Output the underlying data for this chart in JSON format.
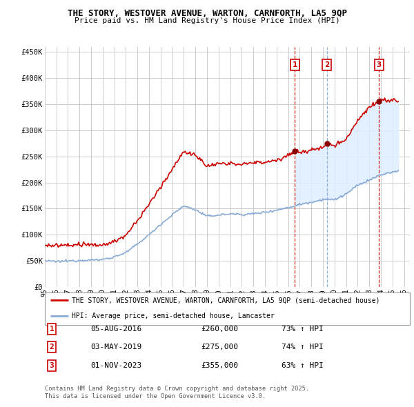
{
  "title": "THE STORY, WESTOVER AVENUE, WARTON, CARNFORTH, LA5 9QP",
  "subtitle": "Price paid vs. HM Land Registry's House Price Index (HPI)",
  "legend_property": "THE STORY, WESTOVER AVENUE, WARTON, CARNFORTH, LA5 9QP (semi-detached house)",
  "legend_hpi": "HPI: Average price, semi-detached house, Lancaster",
  "footer": "Contains HM Land Registry data © Crown copyright and database right 2025.\nThis data is licensed under the Open Government Licence v3.0.",
  "sales": [
    {
      "num": 1,
      "date": "05-AUG-2016",
      "year": 2016.58,
      "price": 260000,
      "hpi_pct": "73% ↑ HPI",
      "vline_color": "#cc0000",
      "vline_style": "--"
    },
    {
      "num": 2,
      "date": "03-MAY-2019",
      "year": 2019.33,
      "price": 275000,
      "hpi_pct": "74% ↑ HPI",
      "vline_color": "#88aad4",
      "vline_style": "--"
    },
    {
      "num": 3,
      "date": "01-NOV-2023",
      "year": 2023.83,
      "price": 355000,
      "hpi_pct": "63% ↑ HPI",
      "vline_color": "#cc0000",
      "vline_style": "--"
    }
  ],
  "property_color": "#cc0000",
  "hpi_color": "#88aad4",
  "shade_color": "#ddeeff",
  "ylim": [
    0,
    460000
  ],
  "xlim_start": 1995,
  "xlim_end": 2026.5,
  "background_color": "#ffffff",
  "grid_color": "#cccccc"
}
